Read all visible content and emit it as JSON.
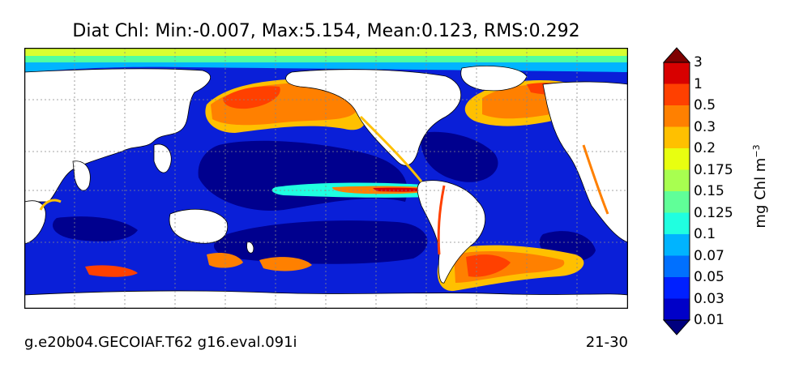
{
  "title": "Diat Chl: Min:-0.007, Max:5.154, Mean:0.123, RMS:0.292",
  "footer": {
    "case_name": "g.e20b04.GECOIAF.T62 g16.eval.091i",
    "years": "21-30"
  },
  "colorbar": {
    "units_label": "mg Chl m",
    "units_exponent": "−3",
    "levels": [
      "0.01",
      "0.03",
      "0.05",
      "0.07",
      "0.1",
      "0.125",
      "0.15",
      "0.175",
      "0.2",
      "0.3",
      "0.5",
      "1",
      "3"
    ],
    "colors": [
      "#00007f",
      "#0000c8",
      "#0020ff",
      "#0070ff",
      "#00b4ff",
      "#20ffe0",
      "#60ff98",
      "#a8ff50",
      "#e8ff10",
      "#ffc000",
      "#ff8000",
      "#ff4000",
      "#d80000",
      "#7f0000"
    ]
  },
  "map": {
    "ocean_low": "#0a1fd8",
    "ocean_deep": "#00008e",
    "land": "#ffffff",
    "grid": "#888888"
  }
}
